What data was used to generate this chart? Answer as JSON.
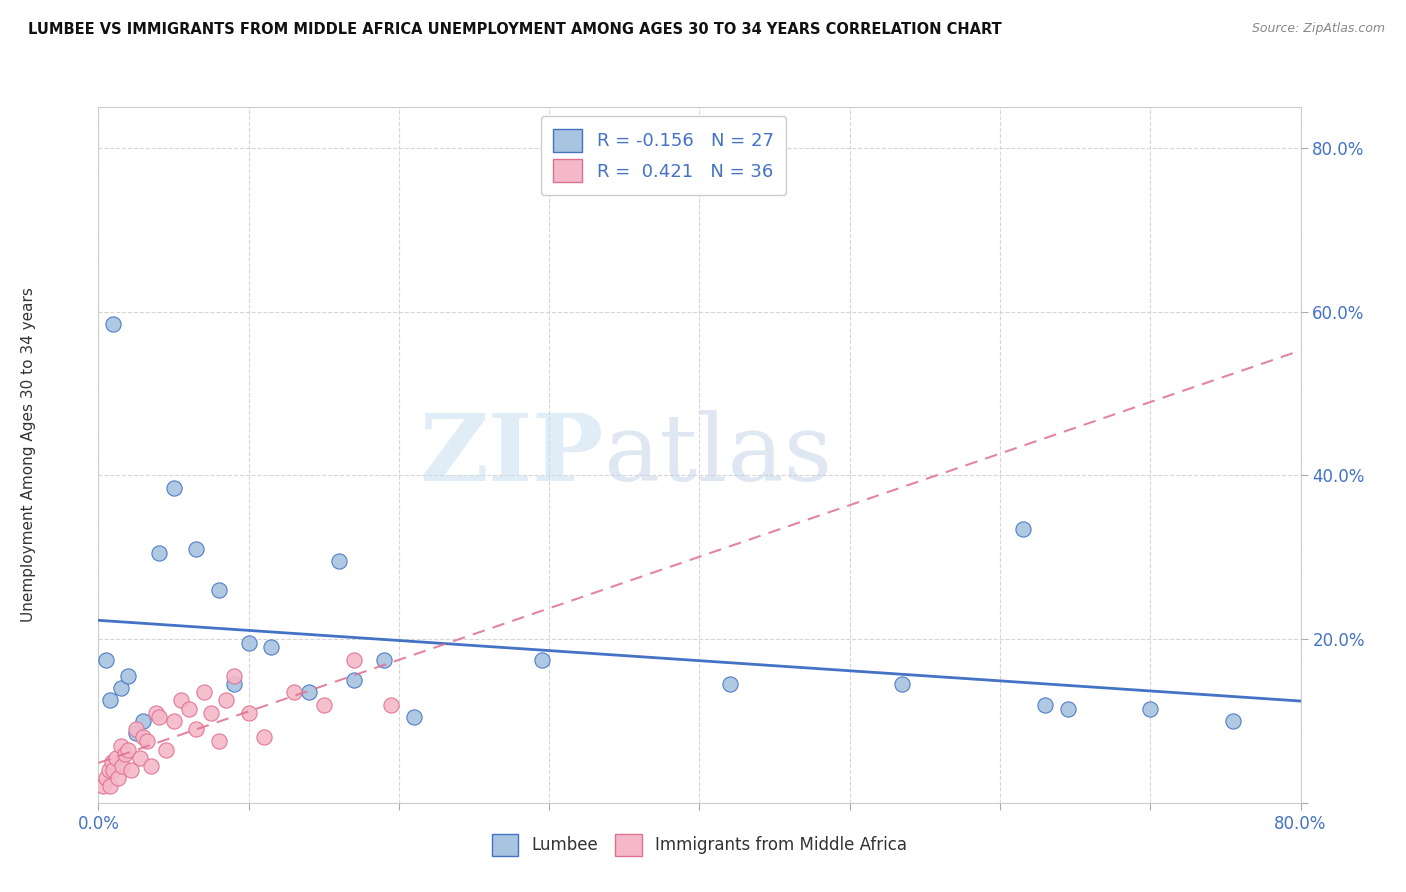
{
  "title": "LUMBEE VS IMMIGRANTS FROM MIDDLE AFRICA UNEMPLOYMENT AMONG AGES 30 TO 34 YEARS CORRELATION CHART",
  "source": "Source: ZipAtlas.com",
  "ylabel": "Unemployment Among Ages 30 to 34 years",
  "xmin": 0.0,
  "xmax": 0.8,
  "ymin": 0.0,
  "ymax": 0.85,
  "xticks": [
    0.0,
    0.1,
    0.2,
    0.3,
    0.4,
    0.5,
    0.6,
    0.7,
    0.8
  ],
  "yticks": [
    0.0,
    0.2,
    0.4,
    0.6,
    0.8
  ],
  "lumbee_R": -0.156,
  "lumbee_N": 27,
  "immigrants_R": 0.421,
  "immigrants_N": 36,
  "lumbee_color": "#a8c4e0",
  "lumbee_line_color": "#4472c4",
  "immigrants_color": "#f4b8c8",
  "immigrants_line_color": "#e07090",
  "watermark_zip": "ZIP",
  "watermark_atlas": "atlas",
  "lumbee_x": [
    0.005,
    0.008,
    0.01,
    0.015,
    0.02,
    0.025,
    0.03,
    0.04,
    0.05,
    0.065,
    0.08,
    0.09,
    0.1,
    0.115,
    0.14,
    0.16,
    0.17,
    0.19,
    0.21,
    0.295,
    0.42,
    0.535,
    0.615,
    0.63,
    0.645,
    0.7,
    0.755
  ],
  "lumbee_y": [
    0.175,
    0.125,
    0.585,
    0.14,
    0.155,
    0.085,
    0.1,
    0.305,
    0.385,
    0.31,
    0.26,
    0.145,
    0.195,
    0.19,
    0.135,
    0.295,
    0.15,
    0.175,
    0.105,
    0.175,
    0.145,
    0.145,
    0.335,
    0.12,
    0.115,
    0.115,
    0.1
  ],
  "immigrants_x": [
    0.003,
    0.005,
    0.007,
    0.008,
    0.009,
    0.01,
    0.012,
    0.013,
    0.015,
    0.016,
    0.018,
    0.02,
    0.022,
    0.025,
    0.028,
    0.03,
    0.032,
    0.035,
    0.038,
    0.04,
    0.045,
    0.05,
    0.055,
    0.06,
    0.065,
    0.07,
    0.075,
    0.08,
    0.085,
    0.09,
    0.1,
    0.11,
    0.13,
    0.15,
    0.17,
    0.195
  ],
  "immigrants_y": [
    0.02,
    0.03,
    0.04,
    0.02,
    0.05,
    0.04,
    0.055,
    0.03,
    0.07,
    0.045,
    0.06,
    0.065,
    0.04,
    0.09,
    0.055,
    0.08,
    0.075,
    0.045,
    0.11,
    0.105,
    0.065,
    0.1,
    0.125,
    0.115,
    0.09,
    0.135,
    0.11,
    0.075,
    0.125,
    0.155,
    0.11,
    0.08,
    0.135,
    0.12,
    0.175,
    0.12
  ]
}
